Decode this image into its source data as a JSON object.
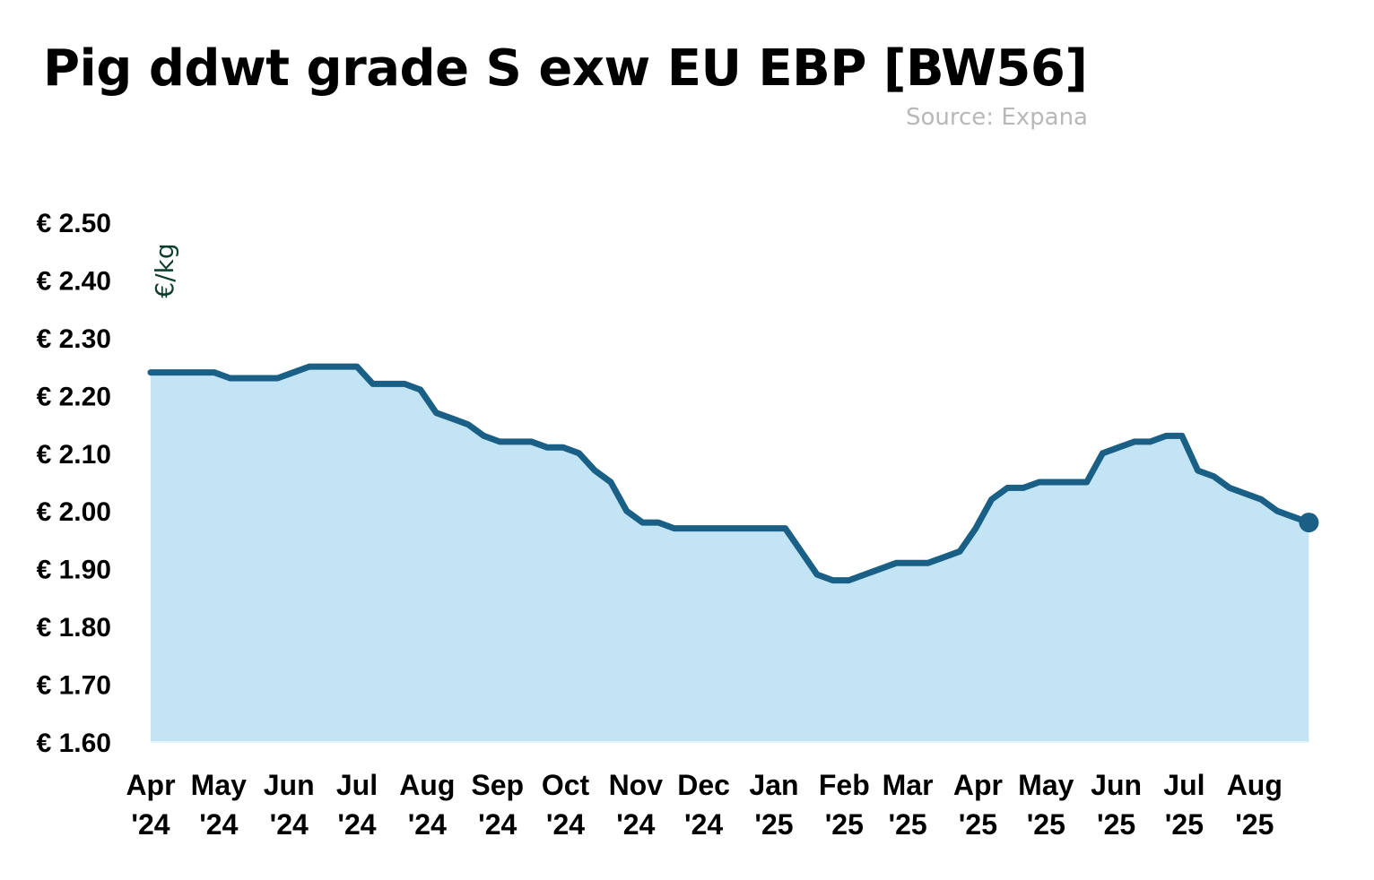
{
  "chart_data": {
    "type": "area",
    "title": "Pig ddwt grade S exw EU EBP [BW56]",
    "subtitle": "Source: Expana",
    "ylabel": "€/kg",
    "xlabel": "",
    "ylim": [
      1.6,
      2.5
    ],
    "y_ticks": [
      "€ 2.50",
      "€ 2.40",
      "€ 2.30",
      "€ 2.20",
      "€ 2.10",
      "€ 2.00",
      "€ 1.90",
      "€ 1.80",
      "€ 1.70",
      "€ 1.60"
    ],
    "y_tick_values": [
      2.5,
      2.4,
      2.3,
      2.2,
      2.1,
      2.0,
      1.9,
      1.8,
      1.7,
      1.6
    ],
    "x_ticks": [
      {
        "month": "Apr",
        "year": "'24"
      },
      {
        "month": "May",
        "year": "'24"
      },
      {
        "month": "Jun",
        "year": "'24"
      },
      {
        "month": "Jul",
        "year": "'24"
      },
      {
        "month": "Aug",
        "year": "'24"
      },
      {
        "month": "Sep",
        "year": "'24"
      },
      {
        "month": "Oct",
        "year": "'24"
      },
      {
        "month": "Nov",
        "year": "'24"
      },
      {
        "month": "Dec",
        "year": "'24"
      },
      {
        "month": "Jan",
        "year": "'25"
      },
      {
        "month": "Feb",
        "year": "'25"
      },
      {
        "month": "Mar",
        "year": "'25"
      },
      {
        "month": "Apr",
        "year": "'25"
      },
      {
        "month": "May",
        "year": "'25"
      },
      {
        "month": "Jun",
        "year": "'25"
      },
      {
        "month": "Jul",
        "year": "'25"
      },
      {
        "month": "Aug",
        "year": "'25"
      }
    ],
    "x_tick_dates": [
      "2024-04-01",
      "2024-05-01",
      "2024-06-01",
      "2024-07-01",
      "2024-08-01",
      "2024-09-01",
      "2024-10-01",
      "2024-11-01",
      "2024-12-01",
      "2025-01-01",
      "2025-02-01",
      "2025-03-01",
      "2025-04-01",
      "2025-05-01",
      "2025-06-01",
      "2025-07-01",
      "2025-08-01"
    ],
    "x_range": [
      "2024-04-01",
      "2025-08-28"
    ],
    "grid": false,
    "legend": "none",
    "series": [
      {
        "values": [
          [
            "2024-04-01",
            2.24
          ],
          [
            "2024-04-08",
            2.24
          ],
          [
            "2024-04-15",
            2.24
          ],
          [
            "2024-04-22",
            2.24
          ],
          [
            "2024-04-29",
            2.24
          ],
          [
            "2024-05-06",
            2.23
          ],
          [
            "2024-05-13",
            2.23
          ],
          [
            "2024-05-20",
            2.23
          ],
          [
            "2024-05-27",
            2.23
          ],
          [
            "2024-06-03",
            2.24
          ],
          [
            "2024-06-10",
            2.25
          ],
          [
            "2024-06-17",
            2.25
          ],
          [
            "2024-06-24",
            2.25
          ],
          [
            "2024-07-01",
            2.25
          ],
          [
            "2024-07-08",
            2.22
          ],
          [
            "2024-07-15",
            2.22
          ],
          [
            "2024-07-22",
            2.22
          ],
          [
            "2024-07-29",
            2.21
          ],
          [
            "2024-08-05",
            2.17
          ],
          [
            "2024-08-12",
            2.16
          ],
          [
            "2024-08-19",
            2.15
          ],
          [
            "2024-08-26",
            2.13
          ],
          [
            "2024-09-02",
            2.12
          ],
          [
            "2024-09-09",
            2.12
          ],
          [
            "2024-09-16",
            2.12
          ],
          [
            "2024-09-23",
            2.11
          ],
          [
            "2024-09-30",
            2.11
          ],
          [
            "2024-10-07",
            2.1
          ],
          [
            "2024-10-14",
            2.07
          ],
          [
            "2024-10-21",
            2.05
          ],
          [
            "2024-10-28",
            2.0
          ],
          [
            "2024-11-04",
            1.98
          ],
          [
            "2024-11-11",
            1.98
          ],
          [
            "2024-11-18",
            1.97
          ],
          [
            "2024-11-25",
            1.97
          ],
          [
            "2024-12-02",
            1.97
          ],
          [
            "2024-12-09",
            1.97
          ],
          [
            "2024-12-16",
            1.97
          ],
          [
            "2024-12-23",
            1.97
          ],
          [
            "2024-12-30",
            1.97
          ],
          [
            "2025-01-06",
            1.97
          ],
          [
            "2025-01-13",
            1.93
          ],
          [
            "2025-01-20",
            1.89
          ],
          [
            "2025-01-27",
            1.88
          ],
          [
            "2025-02-03",
            1.88
          ],
          [
            "2025-02-10",
            1.89
          ],
          [
            "2025-02-17",
            1.9
          ],
          [
            "2025-02-24",
            1.91
          ],
          [
            "2025-03-03",
            1.91
          ],
          [
            "2025-03-10",
            1.91
          ],
          [
            "2025-03-17",
            1.92
          ],
          [
            "2025-03-24",
            1.93
          ],
          [
            "2025-03-31",
            1.97
          ],
          [
            "2025-04-07",
            2.02
          ],
          [
            "2025-04-14",
            2.04
          ],
          [
            "2025-04-21",
            2.04
          ],
          [
            "2025-04-28",
            2.05
          ],
          [
            "2025-05-05",
            2.05
          ],
          [
            "2025-05-12",
            2.05
          ],
          [
            "2025-05-19",
            2.05
          ],
          [
            "2025-05-26",
            2.1
          ],
          [
            "2025-06-02",
            2.11
          ],
          [
            "2025-06-09",
            2.12
          ],
          [
            "2025-06-16",
            2.12
          ],
          [
            "2025-06-23",
            2.13
          ],
          [
            "2025-06-30",
            2.13
          ],
          [
            "2025-07-07",
            2.07
          ],
          [
            "2025-07-14",
            2.06
          ],
          [
            "2025-07-21",
            2.04
          ],
          [
            "2025-07-28",
            2.03
          ],
          [
            "2025-08-04",
            2.02
          ],
          [
            "2025-08-11",
            2.0
          ],
          [
            "2025-08-18",
            1.99
          ],
          [
            "2025-08-25",
            1.98
          ]
        ],
        "line_color": "#1a5f85",
        "fill_color": "#c2e4f5"
      }
    ]
  }
}
